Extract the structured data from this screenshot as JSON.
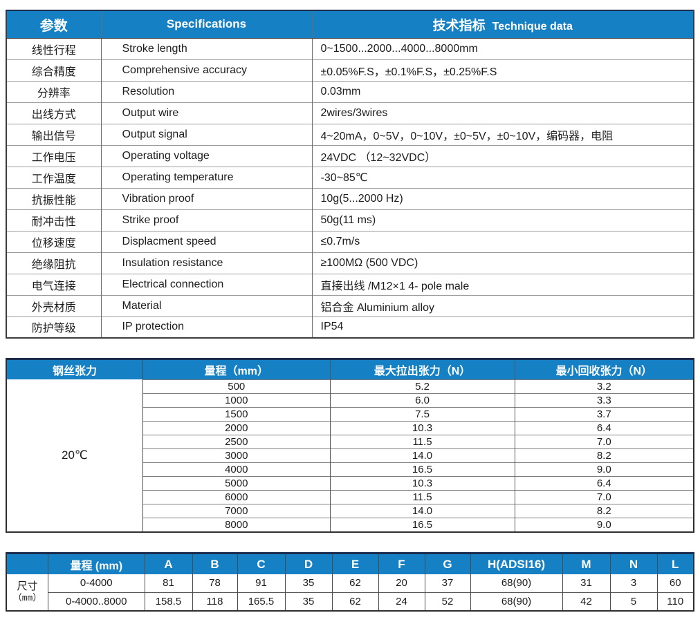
{
  "colors": {
    "header_blue": "#1580c4",
    "navy_top_border": "#1b2b4d",
    "body_text": "#1c1c1c",
    "grid_line": "#8a8a8a"
  },
  "spec_table": {
    "header": {
      "param": "参数",
      "spec": "Specifications",
      "tech_cn": "技术指标",
      "tech_en": "Technique data"
    },
    "rows": [
      {
        "cn": "线性行程",
        "en": "Stroke length",
        "value": "0~1500...2000...4000...8000mm"
      },
      {
        "cn": "综合精度",
        "en": "Comprehensive accuracy",
        "value": "±0.05%F.S，±0.1%F.S，±0.25%F.S"
      },
      {
        "cn": "分辨率",
        "en": "Resolution",
        "value": "0.03mm"
      },
      {
        "cn": "出线方式",
        "en": "Output wire",
        "value": "2wires/3wires"
      },
      {
        "cn": "输出信号",
        "en": "Output signal",
        "value": "4~20mA，0~5V，0~10V，±0~5V，±0~10V，编码器，电阻"
      },
      {
        "cn": "工作电压",
        "en": "Operating voltage",
        "value": "24VDC （12~32VDC）"
      },
      {
        "cn": "工作温度",
        "en": "Operating temperature",
        "value": "-30~85℃"
      },
      {
        "cn": "抗振性能",
        "en": "Vibration proof",
        "value": "10g(5...2000 Hz)"
      },
      {
        "cn": "耐冲击性",
        "en": "Strike  proof",
        "value": "50g(11 ms)"
      },
      {
        "cn": "位移速度",
        "en": "Displacment speed",
        "value": "≤0.7m/s"
      },
      {
        "cn": "绝缘阻抗",
        "en": "Insulation resistance",
        "value": "≥100MΩ (500 VDC)"
      },
      {
        "cn": "电气连接",
        "en": "Electrical connection",
        "value": "直接出线 /M12×1   4- pole male"
      },
      {
        "cn": "外壳材质",
        "en": "Material",
        "value": "铝合金  Aluminium alloy"
      },
      {
        "cn": "防护等级",
        "en": "IP  protection",
        "value": "IP54"
      }
    ]
  },
  "tension_table": {
    "header": {
      "label": "钢丝张力",
      "range": "量程（mm）",
      "max_pull": "最大拉出张力（N）",
      "min_recoil": "最小回收张力（N）"
    },
    "temp": "20℃",
    "rows": [
      [
        "500",
        "5.2",
        "3.2"
      ],
      [
        "1000",
        "6.0",
        "3.3"
      ],
      [
        "1500",
        "7.5",
        "3.7"
      ],
      [
        "2000",
        "10.3",
        "6.4"
      ],
      [
        "2500",
        "11.5",
        "7.0"
      ],
      [
        "3000",
        "14.0",
        "8.2"
      ],
      [
        "4000",
        "16.5",
        "9.0"
      ],
      [
        "5000",
        "10.3",
        "6.4"
      ],
      [
        "6000",
        "11.5",
        "7.0"
      ],
      [
        "7000",
        "14.0",
        "8.2"
      ],
      [
        "8000",
        "16.5",
        "9.0"
      ]
    ]
  },
  "dimensions_table": {
    "row_label": {
      "cn": "尺寸",
      "unit": "（mm）"
    },
    "headers": [
      "量程 (mm)",
      "A",
      "B",
      "C",
      "D",
      "E",
      "F",
      "G",
      "H(ADSI16)",
      "M",
      "N",
      "L"
    ],
    "rows": [
      [
        "0-4000",
        "81",
        "78",
        "91",
        "35",
        "62",
        "20",
        "37",
        "68(90)",
        "31",
        "3",
        "60"
      ],
      [
        "0-4000..8000",
        "158.5",
        "118",
        "165.5",
        "35",
        "62",
        "24",
        "52",
        "68(90)",
        "42",
        "5",
        "110"
      ]
    ]
  }
}
